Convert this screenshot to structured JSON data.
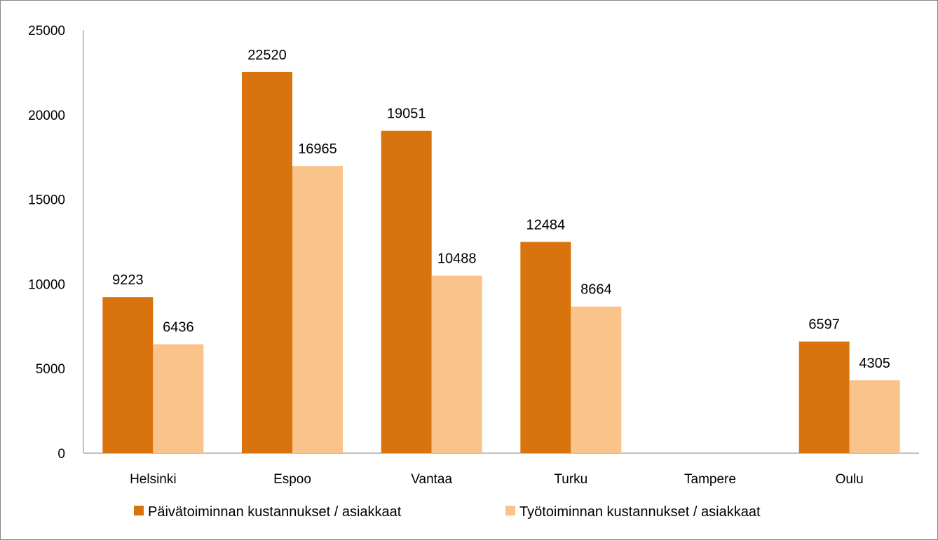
{
  "chart_data": {
    "type": "bar",
    "title": "",
    "xlabel": "",
    "ylabel": "",
    "ylim": [
      0,
      25000
    ],
    "yticks": [
      0,
      5000,
      10000,
      15000,
      20000,
      25000
    ],
    "grid": false,
    "legend_position": "bottom",
    "categories": [
      "Helsinki",
      "Espoo",
      "Vantaa",
      "Turku",
      "Tampere",
      "Oulu"
    ],
    "series": [
      {
        "name": "Päivätoiminnan kustannukset / asiakkaat",
        "color": "#d9730d",
        "values": [
          9223,
          22520,
          19051,
          12484,
          null,
          6597
        ]
      },
      {
        "name": "Työtoiminnan kustannukset / asiakkaat",
        "color": "#f9c38a",
        "values": [
          6436,
          16965,
          10488,
          8664,
          null,
          4305
        ]
      }
    ]
  }
}
